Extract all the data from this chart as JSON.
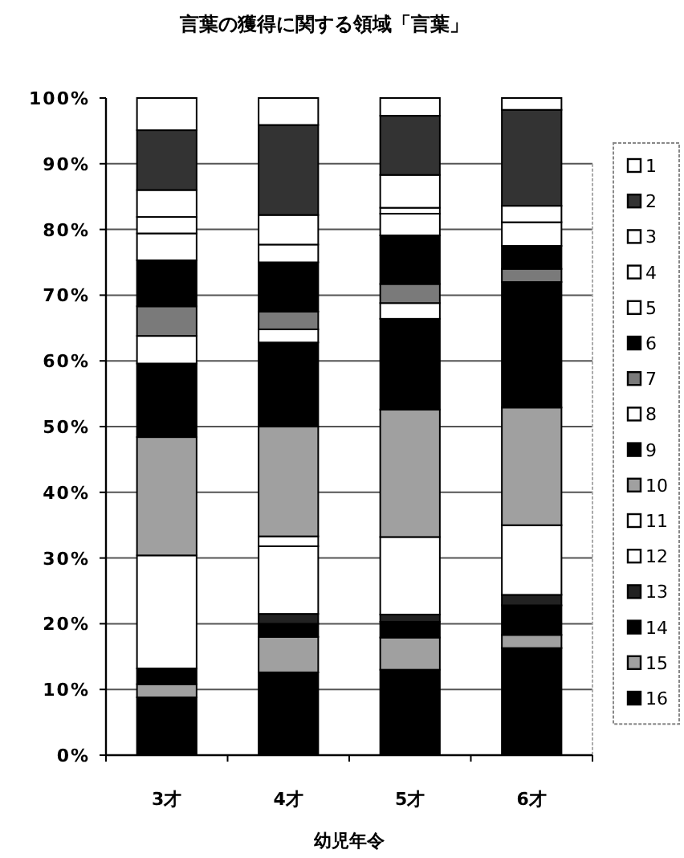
{
  "chart_data": {
    "type": "bar",
    "title": "言葉の獲得に関する領域「言葉」",
    "xlabel": "幼児年令",
    "categories": [
      "3才",
      "4才",
      "5才",
      "6才"
    ],
    "stacked": true,
    "ylim": [
      0,
      100
    ],
    "yticks": [
      {
        "value": 0,
        "label": "0%"
      },
      {
        "value": 10,
        "label": "10%"
      },
      {
        "value": 20,
        "label": "20%"
      },
      {
        "value": 30,
        "label": "30%"
      },
      {
        "value": 40,
        "label": "40%"
      },
      {
        "value": 50,
        "label": "50%"
      },
      {
        "value": 60,
        "label": "60%"
      },
      {
        "value": 70,
        "label": "70%"
      },
      {
        "value": 80,
        "label": "80%"
      },
      {
        "value": 90,
        "label": "90%"
      },
      {
        "value": 100,
        "label": "100%"
      }
    ],
    "grid": "y",
    "legend": "right",
    "series": [
      {
        "name": "16",
        "color": "#000000",
        "values": [
          8.8,
          12.6,
          13.0,
          16.3
        ]
      },
      {
        "name": "15",
        "color": "#a0a0a0",
        "values": [
          2.0,
          5.4,
          4.9,
          2.0
        ]
      },
      {
        "name": "14",
        "color": "#000000",
        "values": [
          2.4,
          2.0,
          2.4,
          4.5
        ]
      },
      {
        "name": "13",
        "color": "#222222",
        "values": [
          0,
          1.5,
          1.1,
          1.6
        ]
      },
      {
        "name": "12",
        "color": "#ffffff",
        "values": [
          17.2,
          10.3,
          11.8,
          10.6
        ]
      },
      {
        "name": "11",
        "color": "#ffffff",
        "values": [
          0,
          1.5,
          0,
          0
        ]
      },
      {
        "name": "10",
        "color": "#a0a0a0",
        "values": [
          18.0,
          16.7,
          19.4,
          17.9
        ]
      },
      {
        "name": "9",
        "color": "#000000",
        "values": [
          11.2,
          12.8,
          13.8,
          19.1
        ]
      },
      {
        "name": "8",
        "color": "#ffffff",
        "values": [
          4.2,
          2.0,
          2.4,
          0
        ]
      },
      {
        "name": "7",
        "color": "#7a7a7a",
        "values": [
          4.5,
          2.7,
          2.9,
          2.0
        ]
      },
      {
        "name": "6",
        "color": "#000000",
        "values": [
          7.0,
          7.5,
          7.4,
          3.5
        ]
      },
      {
        "name": "5",
        "color": "#ffffff",
        "values": [
          4.1,
          2.7,
          3.3,
          3.6
        ]
      },
      {
        "name": "4",
        "color": "#ffffff",
        "values": [
          2.5,
          4.5,
          0.9,
          2.5
        ]
      },
      {
        "name": "3",
        "color": "#ffffff",
        "values": [
          4.1,
          0,
          5.0,
          0
        ]
      },
      {
        "name": "2",
        "color": "#333333",
        "values": [
          9.1,
          13.7,
          9.0,
          14.6
        ]
      },
      {
        "name": "1",
        "color": "#ffffff",
        "values": [
          4.9,
          4.1,
          2.7,
          1.8
        ]
      }
    ]
  }
}
